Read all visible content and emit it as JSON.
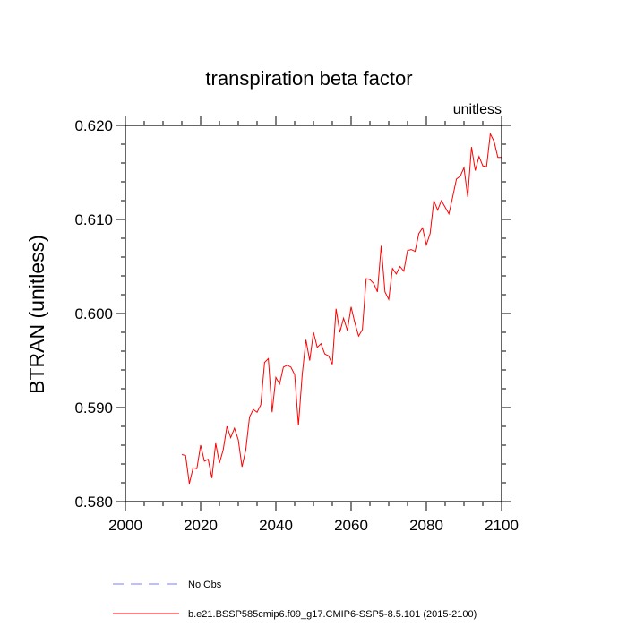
{
  "chart_data": {
    "type": "line",
    "title": "transpiration beta factor",
    "units_label": "unitless",
    "ylabel": "BTRAN  (unitless)",
    "xlabel": "",
    "xlim": [
      2000,
      2100
    ],
    "ylim": [
      0.58,
      0.62
    ],
    "x_ticks": [
      2000,
      2020,
      2040,
      2060,
      2080,
      2100
    ],
    "x_tick_labels": [
      "2000",
      "2020",
      "2040",
      "2060",
      "2080",
      "2100"
    ],
    "y_ticks": [
      0.58,
      0.59,
      0.6,
      0.61,
      0.62
    ],
    "y_tick_labels": [
      "0.580",
      "0.590",
      "0.600",
      "0.610",
      "0.620"
    ],
    "grid": false,
    "legend_position": "bottom",
    "series": [
      {
        "name": "No Obs",
        "color": "#7b7bff",
        "style": "dashed",
        "x": [],
        "y": []
      },
      {
        "name": "b.e21.BSSP585cmip6.f09_g17.CMIP6-SSP5-8.5.101 (2015-2100)",
        "color": "#ff0000",
        "style": "solid",
        "x": [
          2015,
          2016,
          2017,
          2018,
          2019,
          2020,
          2021,
          2022,
          2023,
          2024,
          2025,
          2026,
          2027,
          2028,
          2029,
          2030,
          2031,
          2032,
          2033,
          2034,
          2035,
          2036,
          2037,
          2038,
          2039,
          2040,
          2041,
          2042,
          2043,
          2044,
          2045,
          2046,
          2047,
          2048,
          2049,
          2050,
          2051,
          2052,
          2053,
          2054,
          2055,
          2056,
          2057,
          2058,
          2059,
          2060,
          2061,
          2062,
          2063,
          2064,
          2065,
          2066,
          2067,
          2068,
          2069,
          2070,
          2071,
          2072,
          2073,
          2074,
          2075,
          2076,
          2077,
          2078,
          2079,
          2080,
          2081,
          2082,
          2083,
          2084,
          2085,
          2086,
          2087,
          2088,
          2089,
          2090,
          2091,
          2092,
          2093,
          2094,
          2095,
          2096,
          2097,
          2098,
          2099,
          2100
        ],
        "y": [
          0.585,
          0.5849,
          0.5819,
          0.5836,
          0.5835,
          0.586,
          0.5843,
          0.5845,
          0.5825,
          0.5862,
          0.5841,
          0.5855,
          0.588,
          0.5868,
          0.5878,
          0.5866,
          0.5837,
          0.5855,
          0.589,
          0.5898,
          0.5895,
          0.5903,
          0.5948,
          0.5952,
          0.5895,
          0.5932,
          0.5925,
          0.5943,
          0.5945,
          0.5943,
          0.5935,
          0.5881,
          0.5935,
          0.5972,
          0.595,
          0.598,
          0.5964,
          0.5968,
          0.5957,
          0.5955,
          0.5946,
          0.6005,
          0.598,
          0.5995,
          0.5982,
          0.6007,
          0.599,
          0.5976,
          0.5983,
          0.6037,
          0.6036,
          0.6032,
          0.6023,
          0.6072,
          0.6023,
          0.6015,
          0.6048,
          0.6042,
          0.605,
          0.6045,
          0.6067,
          0.6068,
          0.6066,
          0.6085,
          0.6091,
          0.6073,
          0.6085,
          0.612,
          0.611,
          0.612,
          0.6113,
          0.6106,
          0.6124,
          0.6143,
          0.6146,
          0.6155,
          0.6124,
          0.6177,
          0.6152,
          0.6167,
          0.6157,
          0.6156,
          0.6191,
          0.6183,
          0.6166,
          0.6166
        ]
      }
    ]
  }
}
